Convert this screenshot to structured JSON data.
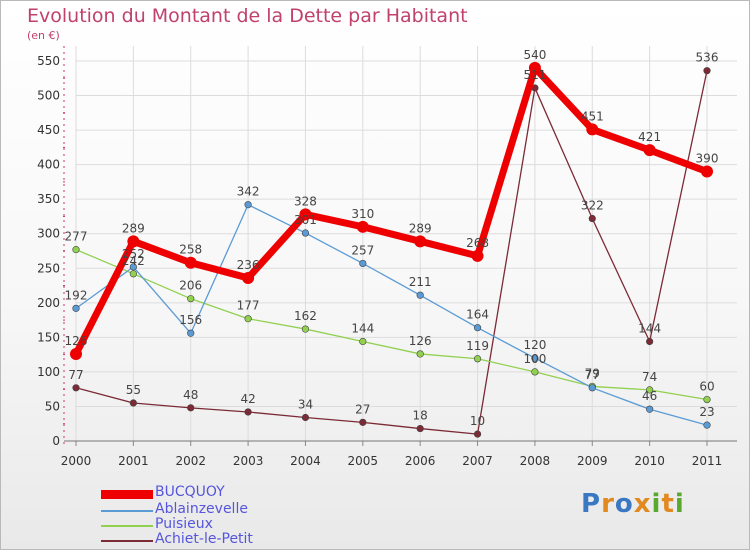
{
  "chart_data": {
    "type": "line",
    "title": "Evolution du Montant de la Dette par Habitant",
    "subtitle": "(en €)",
    "x": [
      "2000",
      "2001",
      "2002",
      "2003",
      "2004",
      "2005",
      "2006",
      "2007",
      "2008",
      "2009",
      "2010",
      "2011"
    ],
    "ylim": [
      0,
      550
    ],
    "yticks": [
      0,
      50,
      100,
      150,
      200,
      250,
      300,
      350,
      400,
      450,
      500,
      550
    ],
    "grid": true,
    "legend_position": "bottom-left",
    "series": [
      {
        "name": "BUCQUOY",
        "color": "#ee0000",
        "values": [
          126,
          289,
          258,
          236,
          328,
          310,
          289,
          268,
          540,
          451,
          421,
          390
        ],
        "labels": [
          "126",
          "289",
          "258",
          "236",
          "328",
          "310",
          "289",
          "268",
          "540",
          "451",
          "421",
          "390"
        ]
      },
      {
        "name": "Ablainzevelle",
        "color": "#5b9bd5",
        "values": [
          192,
          252,
          156,
          342,
          301,
          257,
          211,
          164,
          120,
          77,
          46,
          23
        ],
        "labels": [
          "192",
          "252",
          "156",
          "342",
          "301",
          "257",
          "211",
          "164",
          "120",
          "77",
          "46",
          "23"
        ]
      },
      {
        "name": "Puisieux",
        "color": "#92d050",
        "values": [
          277,
          242,
          206,
          177,
          162,
          144,
          126,
          119,
          100,
          79,
          74,
          60
        ],
        "labels": [
          "277",
          "242",
          "206",
          "177",
          "162",
          "144",
          "126",
          "119",
          "100",
          "79",
          "74",
          "60"
        ]
      },
      {
        "name": "Achiet-le-Petit",
        "color": "#7b2a36",
        "values": [
          77,
          55,
          48,
          42,
          34,
          27,
          18,
          10,
          511,
          322,
          144,
          536
        ],
        "labels": [
          "77",
          "55",
          "48",
          "42",
          "34",
          "27",
          "18",
          "10",
          "511",
          "322",
          "144",
          "536"
        ]
      }
    ]
  },
  "logo": {
    "letters": [
      "P",
      "r",
      "o",
      "x",
      "i",
      "t",
      "i"
    ],
    "colors": [
      "#3b78c4",
      "#e2891f",
      "#3b78c4",
      "#e2891f",
      "#5aa92f",
      "#e2891f",
      "#5aa92f"
    ]
  }
}
